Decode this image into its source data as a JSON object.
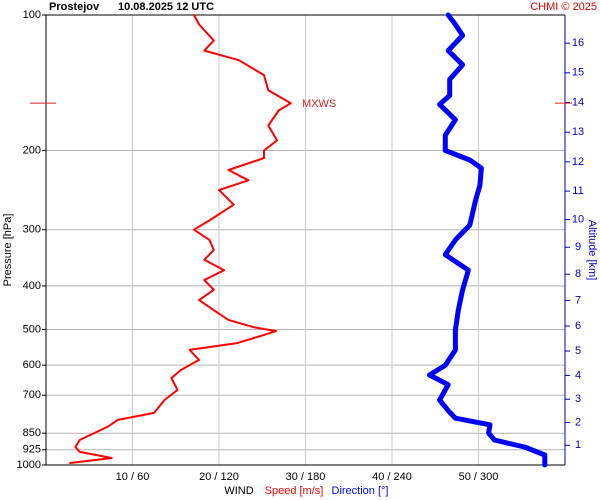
{
  "chart_data": {
    "type": "line",
    "title": "Prostejov",
    "subtitle": "10.08.2025 12 UTC",
    "credit": "CHMI © 2025",
    "x_label": "WIND",
    "y_label": "Pressure [hPa]",
    "y2_label": "Altitude [km]",
    "y_log": true,
    "ylim": [
      1000,
      100
    ],
    "yticks": [
      100,
      200,
      300,
      400,
      500,
      600,
      700,
      850,
      925,
      1000
    ],
    "xlim": [
      0,
      60
    ],
    "x2lim": [
      0,
      360
    ],
    "xticks": [
      {
        "value": 10,
        "label": "10 / 60"
      },
      {
        "value": 20,
        "label": "20 / 120"
      },
      {
        "value": 30,
        "label": "30 / 180"
      },
      {
        "value": 40,
        "label": "40 / 240"
      },
      {
        "value": 50,
        "label": "50 / 300"
      }
    ],
    "y2ticks": [
      1,
      2,
      3,
      4,
      5,
      6,
      7,
      8,
      9,
      10,
      11,
      12,
      13,
      14,
      15,
      16
    ],
    "grid": true,
    "annotation": {
      "text": "MXWS",
      "pressure": 157,
      "color": "#e02020"
    },
    "series": [
      {
        "name": "Speed [m/s]",
        "color": "#ff0000",
        "axis": "x",
        "pressure": [
          990,
          965,
          935,
          912,
          880,
          849,
          823,
          794,
          766,
          717,
          681,
          641,
          615,
          584,
          555,
          536,
          514,
          504,
          494,
          476,
          453,
          430,
          408,
          388,
          369,
          350,
          333,
          316,
          300,
          286,
          264,
          245,
          233,
          221,
          208,
          200,
          190,
          176,
          163,
          157,
          147,
          136,
          126,
          120,
          114,
          105,
          100
        ],
        "values": [
          2.8,
          7.6,
          3.9,
          3.4,
          3.9,
          5.6,
          7.1,
          8.3,
          12.5,
          13.7,
          15.2,
          14.5,
          15.6,
          17.7,
          16.6,
          22.1,
          25.2,
          26.6,
          24.0,
          21.1,
          19.4,
          17.7,
          19.4,
          18.3,
          20.6,
          18.3,
          19.4,
          18.9,
          17.1,
          18.9,
          21.7,
          20.0,
          23.4,
          21.1,
          25.2,
          25.2,
          26.7,
          25.7,
          26.9,
          28.3,
          25.7,
          25.2,
          22.3,
          18.3,
          19.4,
          17.7,
          17.1
        ]
      },
      {
        "name": "Direction [°]",
        "color": "#0000ff",
        "axis": "x2",
        "pressure": [
          1000,
          950,
          912,
          880,
          849,
          814,
          787,
          757,
          717,
          663,
          631,
          600,
          555,
          501,
          453,
          408,
          369,
          341,
          316,
          293,
          258,
          239,
          219,
          210,
          200,
          185,
          171,
          158,
          151,
          139,
          129,
          120,
          111,
          105,
          100
        ],
        "values": [
          346,
          346,
          332,
          311,
          307,
          308,
          284,
          279,
          273,
          279,
          266,
          277,
          284,
          284,
          286,
          289,
          293,
          277,
          284,
          294,
          298,
          301,
          302,
          294,
          277,
          277,
          284,
          273,
          280,
          280,
          289,
          279,
          289,
          284,
          279
        ]
      }
    ]
  }
}
